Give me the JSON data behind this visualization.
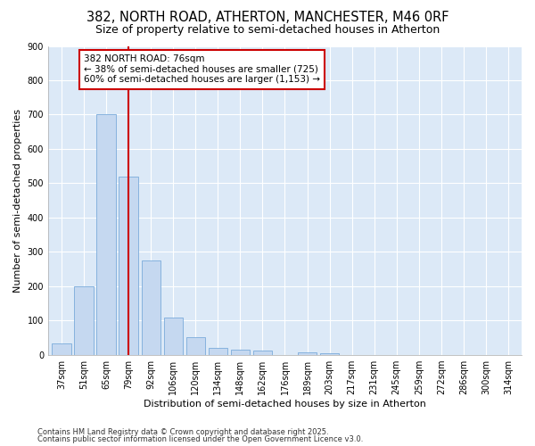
{
  "title": "382, NORTH ROAD, ATHERTON, MANCHESTER, M46 0RF",
  "subtitle": "Size of property relative to semi-detached houses in Atherton",
  "xlabel": "Distribution of semi-detached houses by size in Atherton",
  "ylabel": "Number of semi-detached properties",
  "categories": [
    "37sqm",
    "51sqm",
    "65sqm",
    "79sqm",
    "92sqm",
    "106sqm",
    "120sqm",
    "134sqm",
    "148sqm",
    "162sqm",
    "176sqm",
    "189sqm",
    "203sqm",
    "217sqm",
    "231sqm",
    "245sqm",
    "259sqm",
    "272sqm",
    "286sqm",
    "300sqm",
    "314sqm"
  ],
  "values": [
    33,
    200,
    700,
    520,
    275,
    108,
    52,
    20,
    15,
    12,
    0,
    8,
    4,
    0,
    0,
    0,
    0,
    0,
    0,
    0,
    0
  ],
  "bar_color": "#c5d8f0",
  "bar_edge_color": "#7aabdb",
  "vline_x": 3,
  "vline_color": "#cc0000",
  "annotation_text": "382 NORTH ROAD: 76sqm\n← 38% of semi-detached houses are smaller (725)\n60% of semi-detached houses are larger (1,153) →",
  "annotation_box_color": "#cc0000",
  "ylim": [
    0,
    900
  ],
  "yticks": [
    0,
    100,
    200,
    300,
    400,
    500,
    600,
    700,
    800,
    900
  ],
  "footer1": "Contains HM Land Registry data © Crown copyright and database right 2025.",
  "footer2": "Contains public sector information licensed under the Open Government Licence v3.0.",
  "bg_color": "#ffffff",
  "plot_bg_color": "#dce9f7",
  "title_fontsize": 10.5,
  "subtitle_fontsize": 9,
  "axis_fontsize": 8,
  "tick_fontsize": 7
}
